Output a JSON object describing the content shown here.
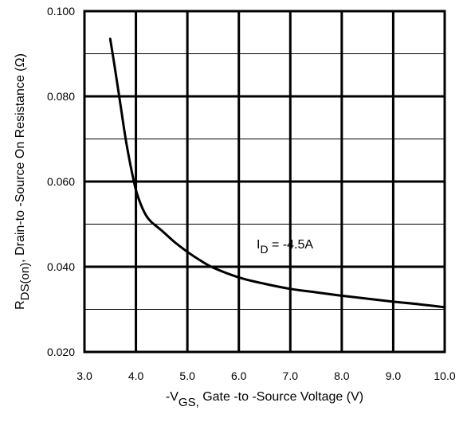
{
  "chart_data": {
    "type": "line",
    "title": "",
    "xlabel": {
      "prefix": "-V",
      "subscript": "GS,",
      "text": " Gate -to -Source Voltage  (V)"
    },
    "ylabel": {
      "prefix": "R",
      "subscript": "DS(on)",
      "separator": ",",
      "text": " Drain-to -Source On Resistance (Ω)"
    },
    "xlim": [
      3.0,
      10.0
    ],
    "ylim": [
      0.02,
      0.1
    ],
    "x_ticks": [
      "3.0",
      "4.0",
      "5.0",
      "6.0",
      "7.0",
      "8.0",
      "9.0",
      "10.0"
    ],
    "y_ticks": [
      "0.020",
      "0.040",
      "0.060",
      "0.080",
      "0.100"
    ],
    "grid": true,
    "annotation": {
      "prefix": "I",
      "subscript": "D",
      "text": " = -4.5A",
      "x": 7.0,
      "y": 0.0425
    },
    "series": [
      {
        "x": [
          3.5,
          3.6,
          3.7,
          3.8,
          3.9,
          4.0,
          4.1,
          4.2,
          4.3,
          4.5,
          4.75,
          5.0,
          5.25,
          5.5,
          6.0,
          6.5,
          7.0,
          7.5,
          8.0,
          8.5,
          9.0,
          9.5,
          10.0
        ],
        "y": [
          0.0935,
          0.086,
          0.078,
          0.07,
          0.0635,
          0.058,
          0.0545,
          0.052,
          0.0505,
          0.0485,
          0.0458,
          0.0435,
          0.0415,
          0.0398,
          0.0375,
          0.036,
          0.0348,
          0.034,
          0.0332,
          0.0325,
          0.0318,
          0.0312,
          0.0305
        ]
      }
    ]
  }
}
